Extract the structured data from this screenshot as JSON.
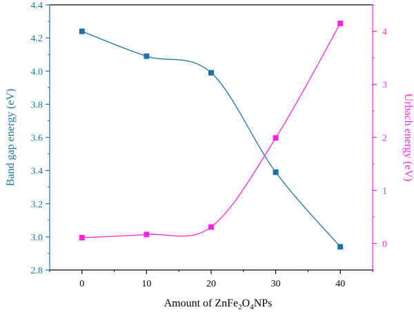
{
  "chart_data": {
    "type": "line",
    "xlabel_parts": [
      "Amount of ZnFe",
      "2",
      "O",
      "4",
      "NPs"
    ],
    "x_ticks": [
      "0",
      "10",
      "20",
      "30",
      "40"
    ],
    "xlim": [
      -5,
      45
    ],
    "left_axis": {
      "label": "Band gap energy (eV)",
      "ylim": [
        2.8,
        4.4
      ],
      "ticks": [
        "2.8",
        "3.0",
        "3.2",
        "3.4",
        "3.6",
        "3.8",
        "4.0",
        "4.2",
        "4.4"
      ],
      "color": "#1a73a8"
    },
    "right_axis": {
      "label": "Urbach energy (eV)",
      "ylim": [
        -0.5,
        4.5
      ],
      "ticks": [
        "0",
        "1",
        "2",
        "3",
        "4"
      ],
      "color": "#ff22e0"
    },
    "series": [
      {
        "axis": "left",
        "color": "#1a73a8",
        "marker": "square",
        "x": [
          0,
          10,
          20,
          30,
          40
        ],
        "y": [
          4.24,
          4.09,
          3.99,
          3.39,
          2.94
        ]
      },
      {
        "axis": "right",
        "color": "#ff22e0",
        "marker": "square",
        "x": [
          0,
          10,
          20,
          30,
          40
        ],
        "y": [
          0.11,
          0.17,
          0.31,
          1.99,
          4.15
        ]
      }
    ]
  }
}
